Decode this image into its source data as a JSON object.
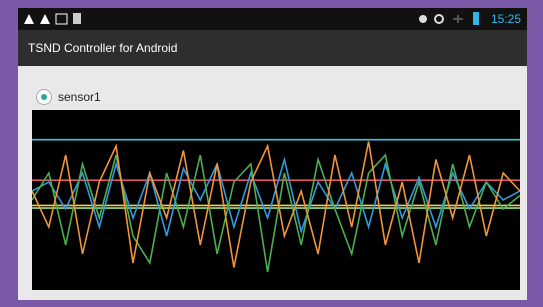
{
  "status_bar": {
    "time": "15:25"
  },
  "app_bar": {
    "title": "TSND Controller for Android"
  },
  "sensor": {
    "label": "sensor1"
  },
  "chart_data": {
    "type": "line",
    "ylim": [
      -1,
      1
    ],
    "series": [
      {
        "color": "#3fc6d8",
        "values": [
          0.67,
          0.67,
          0.67,
          0.67,
          0.67,
          0.67,
          0.67,
          0.67,
          0.67,
          0.67,
          0.67,
          0.67,
          0.67,
          0.67,
          0.67,
          0.67,
          0.67,
          0.67,
          0.67,
          0.67,
          0.67,
          0.67,
          0.67,
          0.67,
          0.67,
          0.67,
          0.67,
          0.67,
          0.67,
          0.67
        ]
      },
      {
        "color": "#e8506a",
        "values": [
          0.22,
          0.22,
          0.22,
          0.22,
          0.22,
          0.22,
          0.22,
          0.22,
          0.22,
          0.22,
          0.22,
          0.22,
          0.22,
          0.22,
          0.22,
          0.22,
          0.22,
          0.22,
          0.22,
          0.22,
          0.22,
          0.22,
          0.22,
          0.22,
          0.22,
          0.22,
          0.22,
          0.22,
          0.22,
          0.22
        ]
      },
      {
        "color": "#e6d84a",
        "values": [
          -0.06,
          -0.06,
          -0.06,
          -0.06,
          -0.06,
          -0.06,
          -0.06,
          -0.06,
          -0.06,
          -0.06,
          -0.06,
          -0.06,
          -0.06,
          -0.06,
          -0.06,
          -0.06,
          -0.06,
          -0.06,
          -0.06,
          -0.06,
          -0.06,
          -0.06,
          -0.06,
          -0.06,
          -0.06,
          -0.06,
          -0.06,
          -0.06,
          -0.06,
          -0.06
        ]
      },
      {
        "color": "#9be08a",
        "values": [
          -0.09,
          -0.09,
          -0.09,
          -0.09,
          -0.09,
          -0.09,
          -0.09,
          -0.09,
          -0.09,
          -0.09,
          -0.09,
          -0.09,
          -0.09,
          -0.09,
          -0.09,
          -0.09,
          -0.09,
          -0.09,
          -0.09,
          -0.09,
          -0.09,
          -0.09,
          -0.09,
          -0.09,
          -0.09,
          -0.09,
          -0.09,
          -0.09,
          -0.09,
          -0.09
        ]
      },
      {
        "color": "#2f9be0",
        "values": [
          0.1,
          0.2,
          -0.1,
          0.3,
          -0.3,
          0.4,
          -0.2,
          0.3,
          -0.4,
          0.35,
          0.0,
          0.4,
          -0.3,
          0.3,
          -0.2,
          0.45,
          -0.35,
          0.2,
          -0.1,
          0.3,
          -0.3,
          0.4,
          -0.2,
          0.25,
          -0.3,
          0.3,
          -0.1,
          0.2,
          0.0,
          0.1
        ]
      },
      {
        "color": "#4caf50",
        "values": [
          0.0,
          0.3,
          -0.5,
          0.4,
          -0.2,
          0.5,
          -0.4,
          -0.7,
          0.3,
          -0.3,
          0.5,
          -0.6,
          0.2,
          0.4,
          -0.8,
          0.3,
          -0.5,
          0.45,
          -0.1,
          -0.6,
          0.3,
          0.5,
          -0.4,
          0.2,
          -0.5,
          0.4,
          -0.3,
          0.2,
          -0.1,
          0.05
        ]
      },
      {
        "color": "#f0953a",
        "values": [
          0.1,
          -0.3,
          0.5,
          -0.6,
          0.2,
          0.6,
          -0.7,
          0.3,
          -0.2,
          0.55,
          -0.5,
          0.4,
          -0.75,
          0.2,
          0.6,
          -0.4,
          0.1,
          -0.6,
          0.5,
          -0.3,
          0.65,
          -0.5,
          0.2,
          -0.7,
          0.45,
          -0.2,
          0.5,
          -0.4,
          0.3,
          0.1
        ]
      }
    ]
  }
}
